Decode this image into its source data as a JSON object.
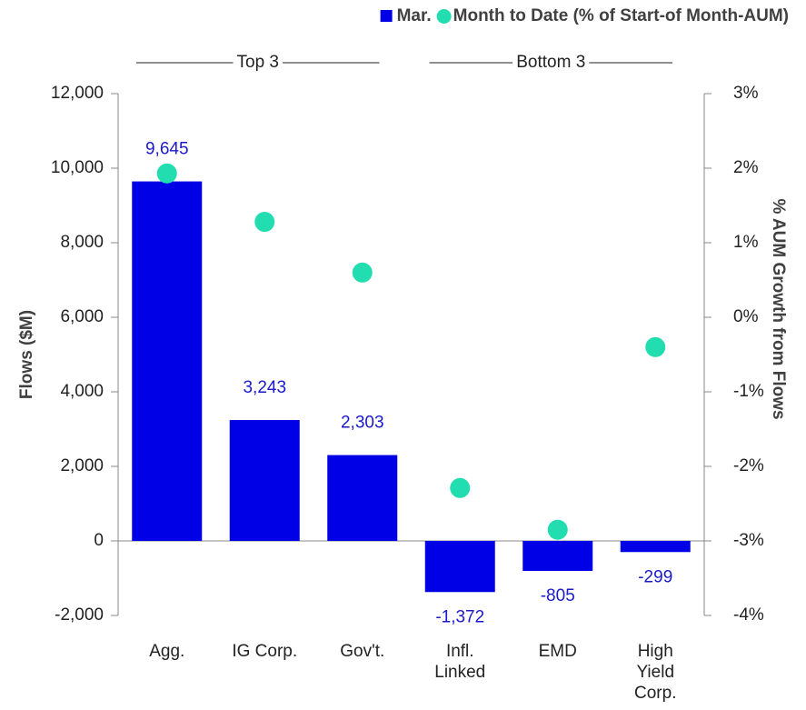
{
  "chart_data": {
    "type": "bar",
    "categories": [
      "Agg.",
      "IG Corp.",
      "Gov't.",
      "Infl.\nLinked",
      "EMD",
      "High\nYield\nCorp."
    ],
    "groups": [
      "Top 3",
      "Bottom 3"
    ],
    "series": [
      {
        "name": "Mar.",
        "type": "bar",
        "axis": "y",
        "color": "#0000e6",
        "values": [
          9645,
          3243,
          2303,
          -1372,
          -805,
          -299
        ],
        "value_labels": [
          "9,645",
          "3,243",
          "2,303",
          "-1,372",
          "-805",
          "-299"
        ]
      },
      {
        "name": "Month to Date (% of Start-of Month-AUM)",
        "type": "scatter",
        "axis": "y2",
        "color": "#22ddb0",
        "values": [
          1.93,
          1.28,
          0.6,
          -2.29,
          -2.85,
          -0.4
        ]
      }
    ],
    "ylabel": "Flows ($M)",
    "y2label": "% AUM Growth from Flows",
    "ylim": [
      -2000,
      12000
    ],
    "yticks": [
      {
        "value": -2000,
        "label": "-2,000"
      },
      0,
      {
        "value": 2000,
        "label": "2,000"
      },
      {
        "value": 4000,
        "label": "4,000"
      },
      {
        "value": 6000,
        "label": "6,000"
      },
      {
        "value": 8000,
        "label": "8,000"
      },
      {
        "value": 10000,
        "label": "10,000"
      },
      {
        "value": 12000,
        "label": "12,000"
      }
    ],
    "y2lim": [
      -4,
      3
    ],
    "y2ticks": [
      {
        "value": -4,
        "label": "-4%"
      },
      {
        "value": -3,
        "label": "-3%"
      },
      {
        "value": -2,
        "label": "-2%"
      },
      {
        "value": -1,
        "label": "-1%"
      },
      {
        "value": 0,
        "label": "0%"
      },
      {
        "value": 1,
        "label": "1%"
      },
      {
        "value": 2,
        "label": "2%"
      },
      {
        "value": 3,
        "label": "3%"
      }
    ],
    "legend": "top-right"
  }
}
